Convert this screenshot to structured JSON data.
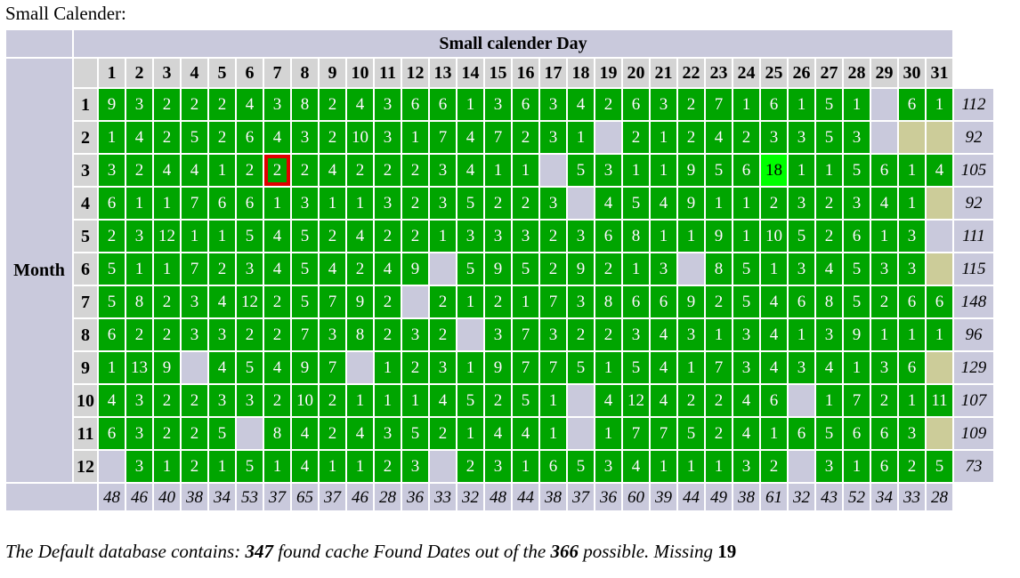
{
  "page_title": "Small Calender:",
  "colors": {
    "found_green": "#00a500",
    "highlight_green": "#00ff00",
    "missing_lavender": "#c9c9dc",
    "invalid_tan": "#cccc99",
    "header_gray": "#d4d4d4",
    "outline_red": "#e00000",
    "cell_text": "#ffffff"
  },
  "chart_data": {
    "type": "heatmap",
    "title": "Small calender Day",
    "row_axis_label": "Month",
    "col_labels": [
      "1",
      "2",
      "3",
      "4",
      "5",
      "6",
      "7",
      "8",
      "9",
      "10",
      "11",
      "12",
      "13",
      "14",
      "15",
      "16",
      "17",
      "18",
      "19",
      "20",
      "21",
      "22",
      "23",
      "24",
      "25",
      "26",
      "27",
      "28",
      "29",
      "30",
      "31"
    ],
    "row_labels": [
      "1",
      "2",
      "3",
      "4",
      "5",
      "6",
      "7",
      "8",
      "9",
      "10",
      "11",
      "12"
    ],
    "matrix": [
      [
        9,
        3,
        2,
        2,
        2,
        4,
        3,
        8,
        2,
        4,
        3,
        6,
        6,
        1,
        3,
        6,
        3,
        4,
        2,
        6,
        3,
        2,
        7,
        1,
        6,
        1,
        5,
        1,
        null,
        6,
        1
      ],
      [
        1,
        4,
        2,
        5,
        2,
        6,
        4,
        3,
        2,
        10,
        3,
        1,
        7,
        4,
        7,
        2,
        3,
        1,
        null,
        2,
        1,
        2,
        4,
        2,
        3,
        3,
        5,
        3,
        null,
        "x",
        "x"
      ],
      [
        3,
        2,
        4,
        4,
        1,
        2,
        2,
        2,
        4,
        2,
        2,
        2,
        3,
        4,
        1,
        1,
        null,
        5,
        3,
        1,
        1,
        9,
        5,
        6,
        18,
        1,
        1,
        5,
        6,
        1,
        4
      ],
      [
        6,
        1,
        1,
        7,
        6,
        6,
        1,
        3,
        1,
        1,
        3,
        2,
        3,
        5,
        2,
        2,
        3,
        null,
        4,
        5,
        4,
        9,
        1,
        1,
        2,
        3,
        2,
        3,
        4,
        1,
        "x"
      ],
      [
        2,
        3,
        12,
        1,
        1,
        5,
        4,
        5,
        2,
        4,
        2,
        2,
        1,
        3,
        3,
        3,
        2,
        3,
        6,
        8,
        1,
        1,
        9,
        1,
        10,
        5,
        2,
        6,
        1,
        3,
        null
      ],
      [
        5,
        1,
        1,
        7,
        2,
        3,
        4,
        5,
        4,
        2,
        4,
        9,
        null,
        5,
        9,
        5,
        2,
        9,
        2,
        1,
        3,
        null,
        8,
        5,
        1,
        3,
        4,
        5,
        3,
        3,
        "x"
      ],
      [
        5,
        8,
        2,
        3,
        4,
        12,
        2,
        5,
        7,
        9,
        2,
        null,
        2,
        1,
        2,
        1,
        7,
        3,
        8,
        6,
        6,
        9,
        2,
        5,
        4,
        6,
        8,
        5,
        2,
        6,
        6
      ],
      [
        6,
        2,
        2,
        3,
        3,
        2,
        2,
        7,
        3,
        8,
        2,
        3,
        2,
        null,
        3,
        7,
        3,
        2,
        2,
        3,
        4,
        3,
        1,
        3,
        4,
        1,
        3,
        9,
        1,
        1,
        1
      ],
      [
        1,
        13,
        9,
        null,
        4,
        5,
        4,
        9,
        7,
        null,
        1,
        2,
        3,
        1,
        9,
        7,
        7,
        5,
        1,
        5,
        4,
        1,
        7,
        3,
        4,
        3,
        4,
        1,
        3,
        6,
        "x"
      ],
      [
        4,
        3,
        2,
        2,
        3,
        3,
        2,
        10,
        2,
        1,
        1,
        1,
        4,
        5,
        2,
        5,
        1,
        null,
        4,
        12,
        4,
        2,
        2,
        4,
        6,
        null,
        1,
        7,
        2,
        1,
        11
      ],
      [
        6,
        3,
        2,
        2,
        5,
        null,
        8,
        4,
        2,
        4,
        3,
        5,
        2,
        1,
        4,
        4,
        1,
        null,
        1,
        7,
        7,
        5,
        2,
        4,
        1,
        6,
        5,
        6,
        6,
        3,
        "x"
      ],
      [
        null,
        3,
        1,
        2,
        1,
        5,
        1,
        4,
        1,
        1,
        2,
        3,
        null,
        2,
        3,
        1,
        6,
        5,
        3,
        4,
        1,
        1,
        1,
        3,
        2,
        null,
        3,
        1,
        6,
        2,
        5
      ]
    ],
    "row_totals": [
      112,
      92,
      105,
      92,
      111,
      115,
      148,
      96,
      129,
      107,
      109,
      73
    ],
    "col_totals": [
      48,
      46,
      40,
      38,
      34,
      53,
      37,
      65,
      37,
      46,
      28,
      36,
      33,
      32,
      48,
      44,
      38,
      37,
      36,
      60,
      39,
      44,
      49,
      38,
      61,
      32,
      43,
      52,
      34,
      33,
      28
    ],
    "highlight_cell": {
      "month": 3,
      "day": 25,
      "value": 18
    },
    "outlined_cell": {
      "month": 3,
      "day": 7,
      "value": 2
    }
  },
  "footer": {
    "segments": [
      {
        "style": "i",
        "text": "The Default database contains: "
      },
      {
        "style": "bi",
        "text": "347"
      },
      {
        "style": "i",
        "text": " found cache Found Dates out of the "
      },
      {
        "style": "bi",
        "text": "366"
      },
      {
        "style": "i",
        "text": " possible. Missing "
      },
      {
        "style": "b",
        "text": "19"
      }
    ]
  }
}
